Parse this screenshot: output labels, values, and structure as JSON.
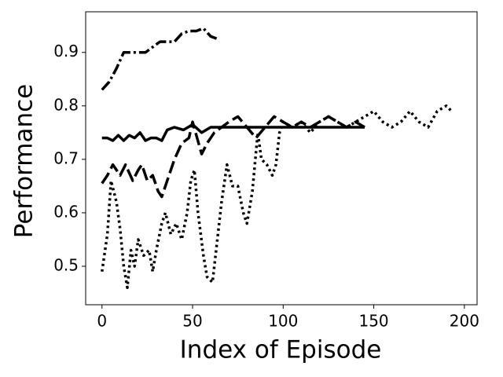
{
  "chart_data": {
    "type": "line",
    "x_label": "Index of Episode",
    "y_label": "Performance",
    "xlim": [
      -9,
      207
    ],
    "ylim": [
      0.428,
      0.976
    ],
    "xticks": [
      0,
      50,
      100,
      150,
      200
    ],
    "yticks": [
      0.5,
      0.6,
      0.7,
      0.8,
      0.9
    ],
    "series": [
      {
        "color": "#000000",
        "dash": "14,4,3,4",
        "x": [
          0,
          4,
          8,
          12,
          16,
          20,
          24,
          28,
          32,
          36,
          40,
          44,
          48,
          52,
          56,
          60,
          64
        ],
        "values": [
          0.83,
          0.845,
          0.87,
          0.9,
          0.9,
          0.9,
          0.9,
          0.91,
          0.92,
          0.92,
          0.92,
          0.935,
          0.94,
          0.94,
          0.945,
          0.93,
          0.925
        ]
      },
      {
        "color": "#000000",
        "dash": "none",
        "x": [
          0,
          3,
          6,
          9,
          12,
          15,
          18,
          21,
          24,
          27,
          30,
          33,
          36,
          40,
          45,
          50,
          55,
          60,
          65,
          70,
          80,
          90,
          100,
          110,
          120,
          130,
          145
        ],
        "values": [
          0.74,
          0.74,
          0.735,
          0.745,
          0.735,
          0.745,
          0.74,
          0.75,
          0.735,
          0.74,
          0.74,
          0.735,
          0.755,
          0.76,
          0.755,
          0.765,
          0.75,
          0.76,
          0.76,
          0.76,
          0.76,
          0.76,
          0.76,
          0.76,
          0.76,
          0.76,
          0.76
        ]
      },
      {
        "color": "#000000",
        "dash": "16,6",
        "x": [
          0,
          3,
          6,
          10,
          13,
          17,
          20,
          22,
          25,
          28,
          31,
          33,
          36,
          40,
          44,
          48,
          50,
          55,
          58,
          62,
          66,
          70,
          75,
          80,
          85,
          90,
          95,
          100,
          105,
          110,
          115,
          120,
          125,
          130,
          135,
          140,
          145
        ],
        "values": [
          0.655,
          0.67,
          0.69,
          0.67,
          0.69,
          0.66,
          0.68,
          0.69,
          0.66,
          0.67,
          0.64,
          0.63,
          0.66,
          0.7,
          0.73,
          0.74,
          0.77,
          0.71,
          0.73,
          0.75,
          0.76,
          0.77,
          0.78,
          0.76,
          0.74,
          0.76,
          0.78,
          0.77,
          0.76,
          0.77,
          0.76,
          0.77,
          0.78,
          0.77,
          0.76,
          0.77,
          0.76
        ]
      },
      {
        "color": "#000000",
        "dash": "3,4",
        "x": [
          0,
          3,
          5,
          8,
          10,
          12,
          14,
          16,
          18,
          20,
          23,
          26,
          28,
          30,
          33,
          35,
          38,
          41,
          44,
          47,
          49,
          51,
          53,
          56,
          58,
          61,
          63,
          66,
          69,
          72,
          75,
          78,
          80,
          83,
          86,
          88,
          91,
          94,
          96,
          98,
          100,
          105,
          110,
          115,
          120,
          125,
          130,
          135,
          140,
          145,
          150,
          155,
          160,
          165,
          170,
          175,
          180,
          185,
          190,
          193
        ],
        "values": [
          0.49,
          0.56,
          0.66,
          0.62,
          0.57,
          0.5,
          0.46,
          0.53,
          0.5,
          0.55,
          0.52,
          0.53,
          0.49,
          0.53,
          0.58,
          0.6,
          0.56,
          0.58,
          0.55,
          0.6,
          0.66,
          0.68,
          0.6,
          0.52,
          0.48,
          0.47,
          0.53,
          0.62,
          0.69,
          0.65,
          0.65,
          0.6,
          0.58,
          0.64,
          0.75,
          0.7,
          0.69,
          0.67,
          0.69,
          0.75,
          0.77,
          0.76,
          0.77,
          0.75,
          0.77,
          0.78,
          0.77,
          0.76,
          0.77,
          0.78,
          0.79,
          0.77,
          0.76,
          0.77,
          0.79,
          0.77,
          0.76,
          0.79,
          0.8,
          0.79
        ]
      }
    ]
  }
}
